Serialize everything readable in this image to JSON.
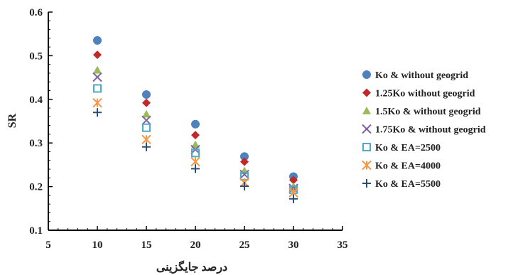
{
  "chart_data": {
    "type": "scatter",
    "title": "",
    "xlabel": "درصد جایگزینی",
    "ylabel": "SR",
    "xlim": [
      5,
      35
    ],
    "ylim": [
      0.1,
      0.6
    ],
    "xticks": [
      "5",
      "10",
      "15",
      "20",
      "25",
      "30",
      "35"
    ],
    "yticks": [
      "0.1",
      "0.2",
      "0.3",
      "0.4",
      "0.5",
      "0.6"
    ],
    "grid": false,
    "legend_position": "right",
    "x": [
      10,
      15,
      20,
      25,
      30
    ],
    "series": [
      {
        "name": "Ko & without geogrid",
        "marker": "circle",
        "color": "#4f81bd",
        "values": [
          0.535,
          0.411,
          0.343,
          0.269,
          0.223
        ]
      },
      {
        "name": "1.25Ko without geogrid",
        "marker": "diamond",
        "color": "#c0282a",
        "values": [
          0.502,
          0.392,
          0.318,
          0.257,
          0.215
        ]
      },
      {
        "name": "1.5Ko & without geogrid",
        "marker": "triangle",
        "color": "#9bbb59",
        "values": [
          0.467,
          0.366,
          0.296,
          0.236,
          0.2
        ]
      },
      {
        "name": "1.75Ko & without geogrid",
        "marker": "x",
        "color": "#8064a2",
        "values": [
          0.451,
          0.352,
          0.285,
          0.228,
          0.196
        ]
      },
      {
        "name": "Ko & EA=2500",
        "marker": "square",
        "color": "#4bacc6",
        "values": [
          0.425,
          0.335,
          0.277,
          0.224,
          0.193
        ]
      },
      {
        "name": "Ko & EA=4000",
        "marker": "star",
        "color": "#f79646",
        "values": [
          0.392,
          0.308,
          0.257,
          0.209,
          0.186
        ]
      },
      {
        "name": "Ko & EA=5500",
        "marker": "plus",
        "color": "#2c4d75",
        "values": [
          0.37,
          0.291,
          0.241,
          0.201,
          0.172
        ]
      }
    ]
  }
}
